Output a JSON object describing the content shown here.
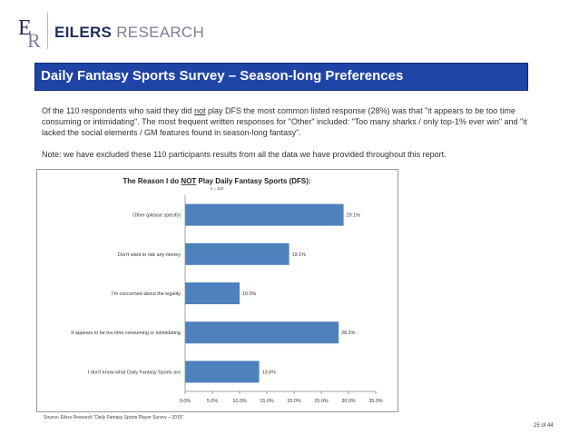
{
  "header": {
    "logo_bold": "EILERS",
    "logo_light": " RESEARCH",
    "colors": {
      "brand": "#1f2d5c",
      "title_bar": "#1e44a6",
      "bar": "#4f81bd"
    }
  },
  "title": "Daily Fantasy Sports Survey – Season-long Preferences",
  "paragraph1": {
    "before": "Of the 110 respondents who said they did ",
    "underlined": "not",
    "after": " play DFS the most common listed response (28%) was that \"it appears to be too time consuming or intimidating\".  The most frequent written responses for \"Other\" included: \"Too many sharks / only top-1% ever win\" and \"it lacked the social elements / GM features found in season-long fantasy\"."
  },
  "paragraph2": "Note: we have excluded these 110 participants results from all the data we have provided throughout this report.",
  "chart_data": {
    "type": "bar",
    "orientation": "horizontal",
    "title_before": "The Reason I do ",
    "title_underlined": "NOT",
    "title_after": " Play Daily Fantasy Sports (DFS):",
    "subtitle": "n = 110",
    "categories": [
      "Other (please specify)",
      "Don't want to risk any money",
      "I'm concerned about the legality",
      "It appears to be too time consuming or intimidating",
      "I don't know what Daily Fantasy Sports are"
    ],
    "values": [
      29.1,
      19.1,
      10.0,
      28.2,
      13.6
    ],
    "value_labels": [
      "29.1%",
      "19.1%",
      "10.0%",
      "28.2%",
      "13.6%"
    ],
    "xlim": [
      0,
      35
    ],
    "x_ticks": [
      "0.0%",
      "5.0%",
      "10.0%",
      "15.0%",
      "20.0%",
      "25.0%",
      "30.0%",
      "35.0%"
    ],
    "grid": false,
    "legend": "none"
  },
  "source": "Source: Eilers Research \"Daily Fantasy Sports Player Survey – 2015\"",
  "page_number": "25 of 44"
}
